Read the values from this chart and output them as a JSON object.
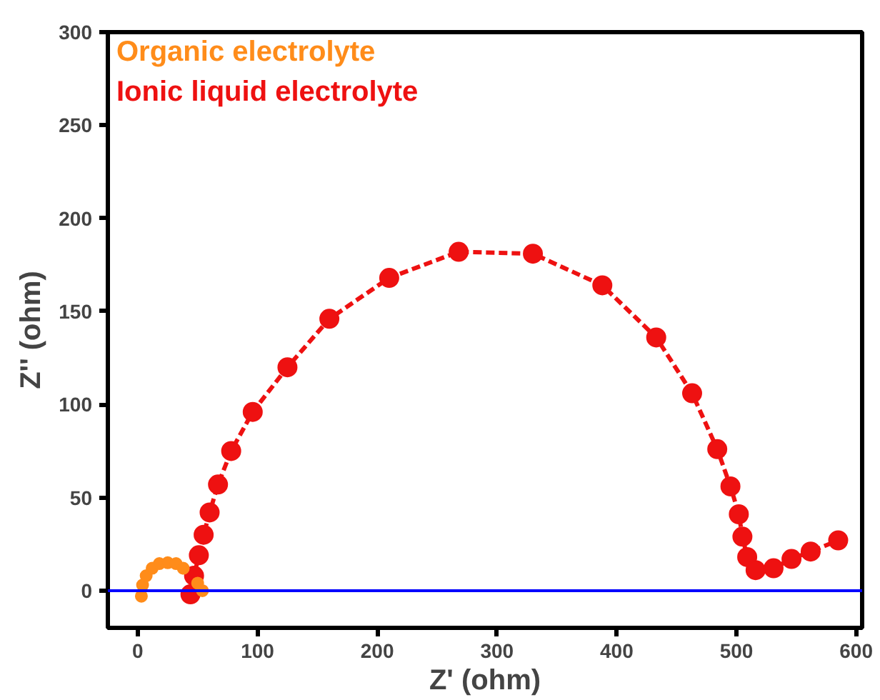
{
  "chart_data": {
    "type": "line",
    "xlabel": "Z' (ohm)",
    "ylabel": "Z'' (ohm)",
    "xlim": [
      -25,
      605
    ],
    "ylim": [
      -20,
      300
    ],
    "xticks": [
      0,
      100,
      200,
      300,
      400,
      500,
      600
    ],
    "yticks": [
      0,
      50,
      100,
      150,
      200,
      250,
      300
    ],
    "grid": false,
    "legend": "top left",
    "marker": "circle",
    "line_style": "dashed",
    "ref_lines": [
      {
        "axis": "y",
        "value": 0,
        "color": "#0000ff"
      }
    ],
    "series": [
      {
        "name": "Organic electrolyte",
        "type": "scatter",
        "color": "#ff8c1a",
        "x": [
          3,
          4,
          7,
          12,
          18,
          25,
          32,
          38,
          50,
          54
        ],
        "values": [
          -3,
          3,
          8,
          12,
          14.5,
          15,
          14.5,
          12,
          4,
          0
        ]
      },
      {
        "name": "Ionic liquid electrolyte",
        "color": "#ee1111",
        "x": [
          44,
          47,
          51,
          55,
          60,
          67,
          78,
          96,
          125,
          160,
          210,
          268,
          330,
          388,
          433,
          463,
          484,
          495,
          502,
          505,
          509,
          516,
          531,
          546,
          562,
          585
        ],
        "values": [
          -2,
          8,
          19,
          30,
          42,
          57,
          75,
          96,
          120,
          146,
          168,
          182,
          181,
          164,
          136,
          106,
          76,
          56,
          41,
          29,
          18,
          11,
          12,
          17,
          21,
          27
        ]
      }
    ]
  }
}
